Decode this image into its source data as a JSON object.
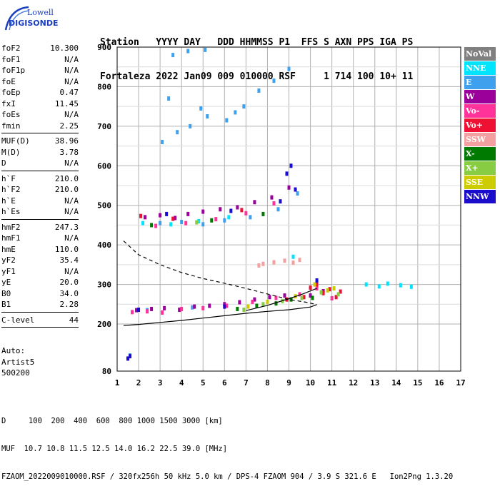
{
  "logo": {
    "line1": "Lowell",
    "line2": "DIGISONDE"
  },
  "header": {
    "line1": "Station   YYYY DAY   DDD HHMMSS P1  FFS S AXN PPS IGA PS",
    "line2": "Fortaleza 2022 Jan09 009 010000 RSF     1 714 100 10+ 11"
  },
  "params_group1": [
    {
      "name": "foF2",
      "value": "10.300"
    },
    {
      "name": "foF1",
      "value": "N/A"
    },
    {
      "name": "foF1p",
      "value": "N/A"
    },
    {
      "name": "foE",
      "value": "N/A"
    },
    {
      "name": "foEp",
      "value": "0.47"
    },
    {
      "name": "fxI",
      "value": "11.45"
    },
    {
      "name": "foEs",
      "value": "N/A"
    },
    {
      "name": "fmin",
      "value": "2.25"
    }
  ],
  "params_group2": [
    {
      "name": "MUF(D)",
      "value": "38.96"
    },
    {
      "name": "M(D)",
      "value": "3.78"
    },
    {
      "name": "D",
      "value": "N/A"
    }
  ],
  "params_group3": [
    {
      "name": "h`F",
      "value": "210.0"
    },
    {
      "name": "h`F2",
      "value": "210.0"
    },
    {
      "name": "h`E",
      "value": "N/A"
    },
    {
      "name": "h`Es",
      "value": "N/A"
    }
  ],
  "params_group4": [
    {
      "name": "hmF2",
      "value": "247.3"
    },
    {
      "name": "hmF1",
      "value": "N/A"
    },
    {
      "name": "hmE",
      "value": "110.0"
    },
    {
      "name": "yF2",
      "value": "35.4"
    },
    {
      "name": "yF1",
      "value": "N/A"
    },
    {
      "name": "yE",
      "value": "20.0"
    },
    {
      "name": "B0",
      "value": "34.0"
    },
    {
      "name": "B1",
      "value": "2.28"
    }
  ],
  "params_group5": [
    {
      "name": "C-level",
      "value": "44"
    }
  ],
  "auto": {
    "line1": "Auto:",
    "line2": "Artist5",
    "line3": "500200"
  },
  "legend": [
    {
      "label": "NoVal",
      "color": "#808080"
    },
    {
      "label": "NNE",
      "color": "#00e5ff"
    },
    {
      "label": "E",
      "color": "#3fa0ee"
    },
    {
      "label": "W",
      "color": "#9b009b"
    },
    {
      "label": "Vo-",
      "color": "#ff3399"
    },
    {
      "label": "Vo+",
      "color": "#ee1133"
    },
    {
      "label": "SSW",
      "color": "#f4a0a0"
    },
    {
      "label": "X-",
      "color": "#007a00"
    },
    {
      "label": "X+",
      "color": "#88cc44"
    },
    {
      "label": "SSE",
      "color": "#cccc00"
    },
    {
      "label": "NNW",
      "color": "#1a0dcc"
    }
  ],
  "footer": {
    "line1": "D     100  200  400  600  800 1000 1500 3000 [km]",
    "line2": "MUF  10.7 10.8 11.5 12.5 14.0 16.2 22.5 39.0 [MHz]",
    "line3": "FZAOM_2022009010000.RSF / 320fx256h 50 kHz 5.0 km / DPS-4 FZAOM 904 / 3.9 S 321.6 E   Ion2Png 1.3.20"
  },
  "chart_data": {
    "type": "scatter",
    "title": "",
    "xlabel": "",
    "ylabel": "",
    "xlim": [
      1,
      17
    ],
    "ylim": [
      80,
      900
    ],
    "x_ticks": [
      1,
      2,
      3,
      4,
      5,
      6,
      7,
      8,
      9,
      10,
      11,
      12,
      13,
      14,
      15,
      16,
      17
    ],
    "y_ticks": [
      80,
      200,
      300,
      400,
      500,
      600,
      700,
      800,
      900
    ],
    "grid": true,
    "series": [
      {
        "name": "NoVal",
        "color": "#808080",
        "points": []
      },
      {
        "name": "NNE",
        "color": "#00e5ff",
        "points": [
          [
            2.2,
            455
          ],
          [
            3.5,
            452
          ],
          [
            4.8,
            460
          ],
          [
            6.2,
            470
          ],
          [
            13.2,
            295
          ],
          [
            13.6,
            302
          ],
          [
            14.2,
            298
          ],
          [
            14.7,
            294
          ],
          [
            12.6,
            300
          ],
          [
            9.2,
            370
          ]
        ]
      },
      {
        "name": "E",
        "color": "#3fa0ee",
        "points": [
          [
            3.1,
            660
          ],
          [
            3.8,
            685
          ],
          [
            4.4,
            700
          ],
          [
            5.2,
            725
          ],
          [
            6.1,
            715
          ],
          [
            6.9,
            750
          ],
          [
            7.6,
            790
          ],
          [
            8.3,
            815
          ],
          [
            9.0,
            845
          ],
          [
            3.6,
            880
          ],
          [
            4.3,
            890
          ],
          [
            5.1,
            893
          ],
          [
            3.4,
            770
          ],
          [
            4.9,
            745
          ],
          [
            6.5,
            735
          ],
          [
            3.0,
            455
          ],
          [
            4.0,
            458
          ],
          [
            5.0,
            452
          ],
          [
            6.0,
            462
          ],
          [
            7.2,
            470
          ],
          [
            8.5,
            490
          ],
          [
            9.4,
            530
          ],
          [
            2.4,
            235
          ],
          [
            4.5,
            242
          ],
          [
            1.6,
            120
          ]
        ]
      },
      {
        "name": "W",
        "color": "#9b009b",
        "points": [
          [
            1.9,
            235
          ],
          [
            2.6,
            238
          ],
          [
            3.2,
            240
          ],
          [
            3.9,
            236
          ],
          [
            4.6,
            244
          ],
          [
            5.3,
            246
          ],
          [
            6.0,
            250
          ],
          [
            6.7,
            255
          ],
          [
            7.4,
            262
          ],
          [
            8.1,
            268
          ],
          [
            8.8,
            272
          ],
          [
            2.3,
            470
          ],
          [
            3.0,
            475
          ],
          [
            3.7,
            468
          ],
          [
            4.3,
            478
          ],
          [
            5.0,
            484
          ],
          [
            5.8,
            490
          ],
          [
            6.6,
            495
          ],
          [
            7.4,
            508
          ],
          [
            8.2,
            520
          ],
          [
            9.0,
            545
          ],
          [
            10.0,
            272
          ],
          [
            10.6,
            283
          ]
        ]
      },
      {
        "name": "Vo-",
        "color": "#ff3399",
        "points": [
          [
            1.7,
            230
          ],
          [
            2.4,
            232
          ],
          [
            3.1,
            229
          ],
          [
            4.0,
            238
          ],
          [
            5.0,
            240
          ],
          [
            6.1,
            246
          ],
          [
            7.3,
            256
          ],
          [
            8.4,
            266
          ],
          [
            9.5,
            275
          ],
          [
            10.3,
            290
          ],
          [
            11.0,
            265
          ],
          [
            2.8,
            448
          ],
          [
            4.2,
            455
          ],
          [
            5.6,
            465
          ],
          [
            7.0,
            480
          ],
          [
            8.3,
            505
          ]
        ]
      },
      {
        "name": "Vo+",
        "color": "#ee1133",
        "points": [
          [
            10.0,
            292
          ],
          [
            10.3,
            300
          ],
          [
            10.6,
            278
          ],
          [
            10.9,
            288
          ],
          [
            11.2,
            268
          ],
          [
            11.4,
            282
          ],
          [
            9.7,
            268
          ],
          [
            8.9,
            262
          ],
          [
            2.1,
            473
          ],
          [
            3.6,
            466
          ],
          [
            6.8,
            488
          ]
        ]
      },
      {
        "name": "SSW",
        "color": "#f4a0a0",
        "points": [
          [
            7.8,
            352
          ],
          [
            8.3,
            356
          ],
          [
            8.8,
            360
          ],
          [
            9.2,
            355
          ],
          [
            9.5,
            362
          ],
          [
            7.6,
            348
          ]
        ]
      },
      {
        "name": "X-",
        "color": "#007a00",
        "points": [
          [
            6.6,
            238
          ],
          [
            7.5,
            246
          ],
          [
            8.4,
            252
          ],
          [
            9.1,
            262
          ],
          [
            10.1,
            266
          ],
          [
            2.6,
            450
          ],
          [
            5.4,
            462
          ],
          [
            7.8,
            478
          ]
        ]
      },
      {
        "name": "X+",
        "color": "#88cc44",
        "points": [
          [
            6.9,
            236
          ],
          [
            7.8,
            250
          ],
          [
            8.7,
            258
          ],
          [
            9.6,
            266
          ],
          [
            10.5,
            280
          ],
          [
            11.3,
            275
          ],
          [
            4.7,
            457
          ]
        ]
      },
      {
        "name": "SSE",
        "color": "#cccc00",
        "points": [
          [
            7.1,
            244
          ],
          [
            8.0,
            256
          ],
          [
            9.3,
            270
          ],
          [
            10.2,
            300
          ],
          [
            10.8,
            285
          ],
          [
            11.1,
            290
          ]
        ]
      },
      {
        "name": "NNW",
        "color": "#1a0dcc",
        "points": [
          [
            1.5,
            112
          ],
          [
            1.6,
            118
          ],
          [
            8.9,
            580
          ],
          [
            9.1,
            600
          ],
          [
            2.0,
            236
          ],
          [
            3.3,
            478
          ],
          [
            6.3,
            486
          ],
          [
            8.6,
            510
          ],
          [
            9.3,
            540
          ],
          [
            10.3,
            310
          ],
          [
            6.0,
            244
          ]
        ]
      }
    ],
    "trace_lines": [
      {
        "style": "solid",
        "color": "#000000",
        "points": [
          [
            1.3,
            196
          ],
          [
            2,
            199
          ],
          [
            3,
            204
          ],
          [
            4,
            209
          ],
          [
            5,
            215
          ],
          [
            6,
            221
          ],
          [
            7,
            227
          ],
          [
            8,
            232
          ],
          [
            9,
            236
          ],
          [
            10,
            243
          ],
          [
            10.3,
            249
          ]
        ]
      },
      {
        "style": "dashed",
        "color": "#000000",
        "points": [
          [
            1.3,
            410
          ],
          [
            2,
            375
          ],
          [
            3,
            350
          ],
          [
            4,
            330
          ],
          [
            5,
            315
          ],
          [
            6,
            303
          ],
          [
            7,
            290
          ],
          [
            8,
            276
          ],
          [
            9,
            262
          ],
          [
            9.8,
            255
          ],
          [
            10.3,
            249
          ]
        ]
      },
      {
        "style": "solid",
        "color": "#000000",
        "points": [
          [
            7.0,
            234
          ],
          [
            8.0,
            247
          ],
          [
            9.0,
            264
          ],
          [
            9.6,
            275
          ],
          [
            10.3,
            290
          ]
        ]
      }
    ]
  }
}
